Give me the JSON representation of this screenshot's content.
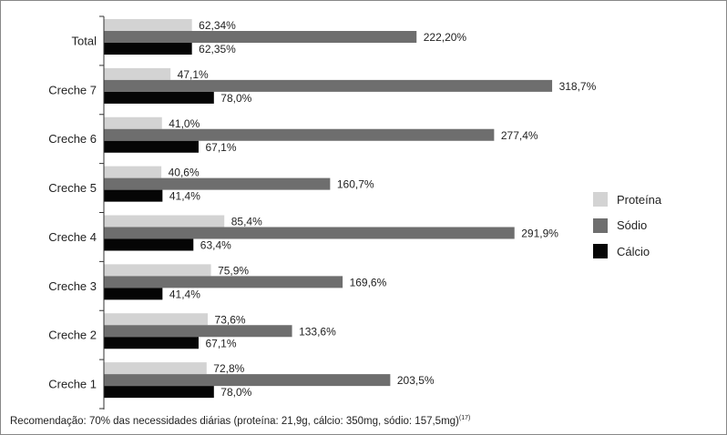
{
  "chart_data": {
    "type": "bar",
    "orientation": "horizontal",
    "categories": [
      "Total",
      "Creche 7",
      "Creche 6",
      "Creche 5",
      "Creche 4",
      "Creche 3",
      "Creche 2",
      "Creche 1"
    ],
    "series": [
      {
        "name": "Proteína",
        "color": "#d3d3d3",
        "values": [
          62.34,
          47.1,
          41.0,
          40.6,
          85.4,
          75.9,
          73.6,
          72.8
        ],
        "labels": [
          "62,34%",
          "47,1%",
          "41,0%",
          "40,6%",
          "85,4%",
          "75,9%",
          "73,6%",
          "72,8%"
        ]
      },
      {
        "name": "Sódio",
        "color": "#6e6e6e",
        "values": [
          222.2,
          318.7,
          277.4,
          160.7,
          291.9,
          169.6,
          133.6,
          203.5
        ],
        "labels": [
          "222,20%",
          "318,7%",
          "277,4%",
          "160,7%",
          "291,9%",
          "169,6%",
          "133,6%",
          "203,5%"
        ]
      },
      {
        "name": "Cálcio",
        "color": "#050505",
        "values": [
          62.35,
          78.0,
          67.1,
          41.4,
          63.4,
          41.4,
          67.1,
          78.0
        ],
        "labels": [
          "62,35%",
          "78,0%",
          "67,1%",
          "41,4%",
          "63,4%",
          "41,4%",
          "67,1%",
          "78,0%"
        ]
      }
    ],
    "legend_position": "right",
    "grid": false
  },
  "footnote": {
    "text": "Recomendação: 70% das necessidades diárias (proteína: 21,9g, cálcio: 350mg, sódio: 157,5mg)",
    "ref": "(17)"
  }
}
